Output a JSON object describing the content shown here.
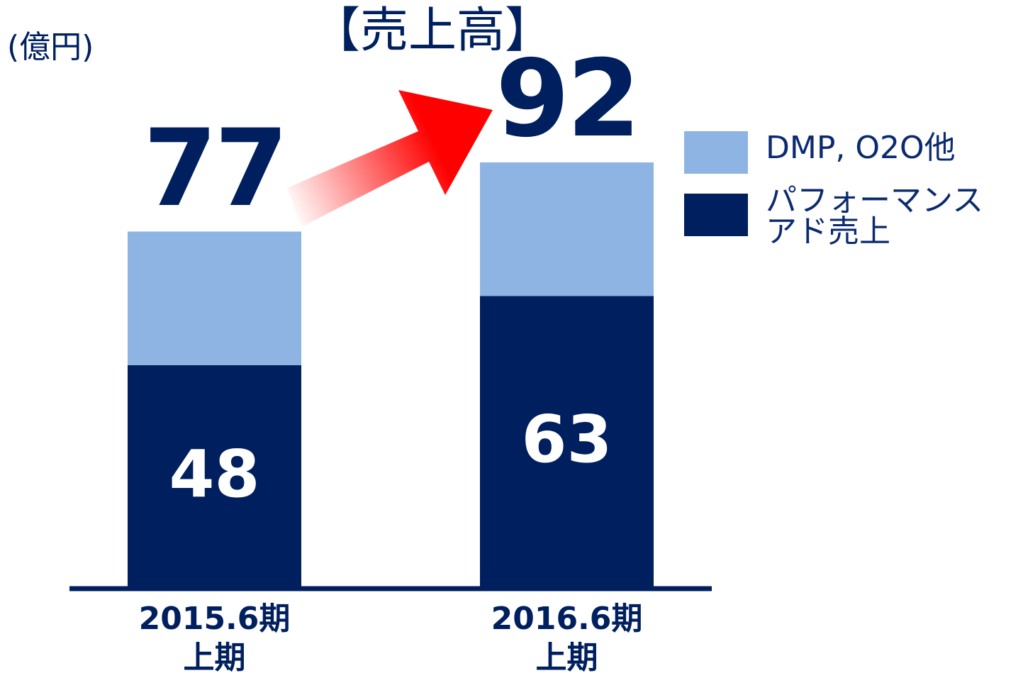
{
  "chart_data": {
    "type": "stacked_bar",
    "title": "【売上高】",
    "unit_label": "(億円)",
    "categories": [
      "2015.6期\n上期",
      "2016.6期\n上期"
    ],
    "series": [
      {
        "name": "パフォーマンス\nアド売上",
        "color": "#001f5f",
        "values": [
          48,
          63
        ]
      },
      {
        "name": "DMP, O2O他",
        "color": "#8eb4e3",
        "values": [
          29,
          29
        ]
      }
    ],
    "totals": [
      77,
      92
    ]
  }
}
